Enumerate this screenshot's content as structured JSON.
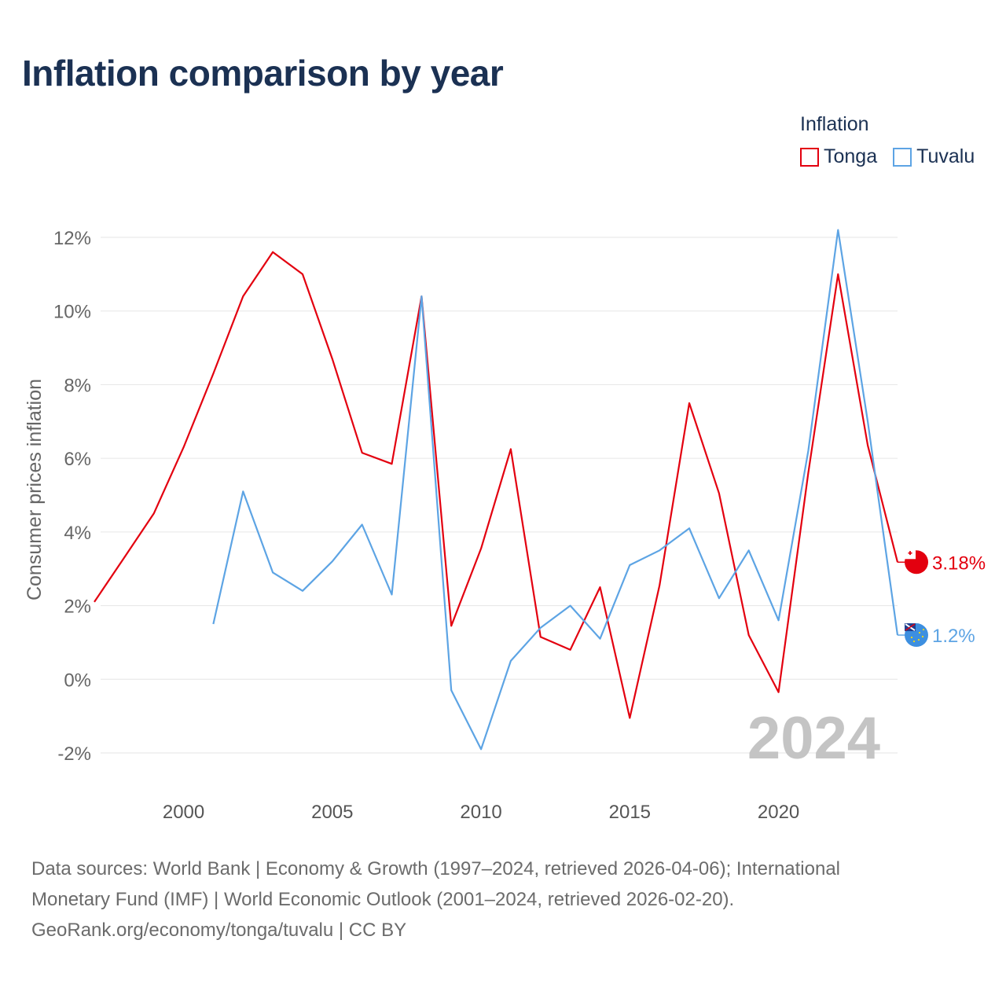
{
  "title": "Inflation comparison by year",
  "legend": {
    "title": "Inflation",
    "items": [
      {
        "name": "Tonga",
        "color": "#e3000f"
      },
      {
        "name": "Tuvalu",
        "color": "#5da4e4"
      }
    ]
  },
  "chart_data": {
    "type": "line",
    "title": "Inflation comparison by year",
    "xlabel": "",
    "ylabel": "Consumer prices inflation",
    "xlim": [
      1997,
      2024
    ],
    "ylim": [
      -3,
      13
    ],
    "x_ticks": [
      2000,
      2005,
      2010,
      2015,
      2020
    ],
    "y_ticks": [
      -2,
      0,
      2,
      4,
      6,
      8,
      10,
      12
    ],
    "y_tick_labels": [
      "-2%",
      "0%",
      "2%",
      "4%",
      "6%",
      "8%",
      "10%",
      "12%"
    ],
    "grid": true,
    "legend_position": "top-right",
    "watermark_year": "2024",
    "series": [
      {
        "name": "Tonga",
        "color": "#e3000f",
        "end_label": "3.18%",
        "x": [
          1997,
          1998,
          1999,
          2000,
          2001,
          2002,
          2003,
          2004,
          2005,
          2006,
          2007,
          2008,
          2009,
          2010,
          2011,
          2012,
          2013,
          2014,
          2015,
          2016,
          2017,
          2018,
          2019,
          2020,
          2021,
          2022,
          2023,
          2024
        ],
        "values": [
          2.1,
          3.3,
          4.5,
          6.3,
          8.3,
          10.4,
          11.6,
          11.0,
          8.7,
          6.15,
          5.85,
          10.4,
          1.45,
          3.55,
          6.25,
          1.15,
          0.8,
          2.5,
          -1.05,
          2.55,
          7.5,
          5.05,
          1.2,
          -0.35,
          5.6,
          11.0,
          6.35,
          3.18
        ]
      },
      {
        "name": "Tuvalu",
        "color": "#5da4e4",
        "end_label": "1.2%",
        "x": [
          2001,
          2002,
          2003,
          2004,
          2005,
          2006,
          2007,
          2008,
          2009,
          2010,
          2011,
          2012,
          2013,
          2014,
          2015,
          2016,
          2017,
          2018,
          2019,
          2020,
          2021,
          2022,
          2023,
          2024
        ],
        "values": [
          1.5,
          5.1,
          2.9,
          2.4,
          3.2,
          4.2,
          2.3,
          10.4,
          -0.3,
          -1.9,
          0.5,
          1.4,
          2.0,
          1.1,
          3.1,
          3.5,
          4.1,
          2.2,
          3.5,
          1.6,
          6.2,
          12.2,
          7.0,
          1.2
        ]
      }
    ]
  },
  "source": {
    "line1": "Data sources: World Bank | Economy & Growth (1997–2024, retrieved 2026-04-06); International",
    "line2": "Monetary Fund (IMF) | World Economic Outlook (2001–2024, retrieved 2026-02-20).",
    "line3": "GeoRank.org/economy/tonga/tuvalu | CC BY"
  }
}
